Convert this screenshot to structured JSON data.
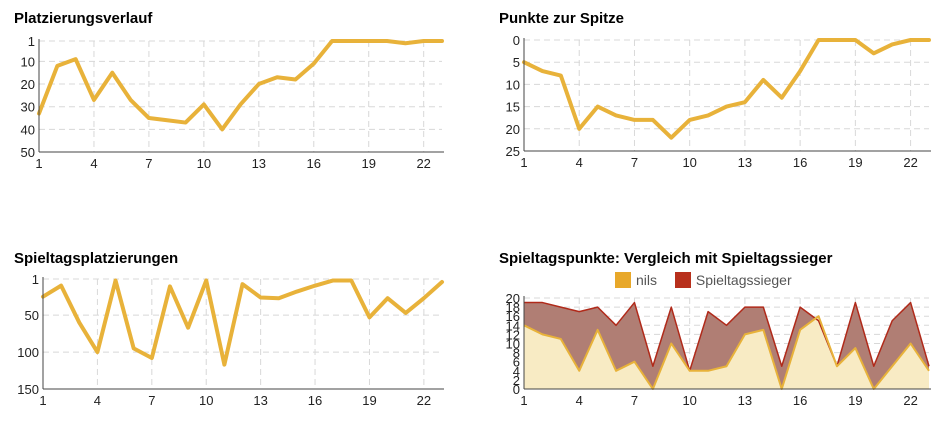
{
  "colors": {
    "line": "#e8b23a",
    "grid": "#d8d8d8",
    "axis": "#444444",
    "winner_fill": "#b07e74",
    "winner_line": "#b02a1a",
    "nils_fill": "#f8ebc4",
    "nils_legend": "#e8a82a",
    "winner_legend": "#b8301c"
  },
  "chart_data": [
    {
      "type": "line",
      "title": "Platzierungsverlauf",
      "x": [
        1,
        2,
        3,
        4,
        5,
        6,
        7,
        8,
        9,
        10,
        11,
        12,
        13,
        14,
        15,
        16,
        17,
        18,
        19,
        20,
        21,
        22,
        23
      ],
      "xticks": [
        1,
        4,
        7,
        10,
        13,
        16,
        19,
        22
      ],
      "yticks": [
        1,
        10,
        20,
        30,
        40,
        50
      ],
      "ylim": [
        1,
        50
      ],
      "y_reversed": true,
      "series": [
        {
          "values": [
            33,
            12,
            9,
            27,
            15,
            27,
            35,
            36,
            37,
            29,
            40,
            29,
            20,
            17,
            18,
            11,
            1,
            1,
            1,
            1,
            2,
            1,
            1
          ]
        }
      ]
    },
    {
      "type": "line",
      "title": "Punkte zur Spitze",
      "x": [
        1,
        2,
        3,
        4,
        5,
        6,
        7,
        8,
        9,
        10,
        11,
        12,
        13,
        14,
        15,
        16,
        17,
        18,
        19,
        20,
        21,
        22,
        23
      ],
      "xticks": [
        1,
        4,
        7,
        10,
        13,
        16,
        19,
        22
      ],
      "yticks": [
        0,
        5,
        10,
        15,
        20,
        25
      ],
      "ylim": [
        0,
        25
      ],
      "y_reversed": true,
      "series": [
        {
          "values": [
            5,
            7,
            8,
            20,
            15,
            17,
            18,
            18,
            22,
            18,
            17,
            15,
            14,
            9,
            13,
            7,
            0,
            0,
            0,
            3,
            1,
            0,
            0
          ]
        }
      ]
    },
    {
      "type": "line",
      "title": "Spieltagsplatzierungen",
      "x": [
        1,
        2,
        3,
        4,
        5,
        6,
        7,
        8,
        9,
        10,
        11,
        12,
        13,
        14,
        15,
        16,
        17,
        18,
        19,
        20,
        21,
        22,
        23
      ],
      "xticks": [
        1,
        4,
        7,
        10,
        13,
        16,
        19,
        22
      ],
      "yticks": [
        1,
        50,
        100,
        150
      ],
      "ylim": [
        1,
        150
      ],
      "y_reversed": true,
      "series": [
        {
          "values": [
            25,
            10,
            60,
            100,
            3,
            95,
            108,
            11,
            67,
            3,
            117,
            8,
            26,
            27,
            18,
            10,
            3,
            3,
            53,
            27,
            47,
            27,
            5
          ]
        }
      ]
    },
    {
      "type": "area",
      "title": "Spieltagspunkte: Vergleich mit Spieltagssieger",
      "legend": [
        "nils",
        "Spieltagssieger"
      ],
      "legend_position": "top",
      "x": [
        1,
        2,
        3,
        4,
        5,
        6,
        7,
        8,
        9,
        10,
        11,
        12,
        13,
        14,
        15,
        16,
        17,
        18,
        19,
        20,
        21,
        22,
        23
      ],
      "xticks": [
        1,
        4,
        7,
        10,
        13,
        16,
        19,
        22
      ],
      "yticks": [
        0,
        2,
        4,
        6,
        8,
        10,
        12,
        14,
        16,
        18,
        20
      ],
      "ylim": [
        0,
        20
      ],
      "series": [
        {
          "name": "nils",
          "values": [
            14,
            12,
            11,
            4,
            13,
            4,
            6,
            0,
            10,
            4,
            4,
            5,
            12,
            13,
            0,
            13,
            16,
            5,
            9,
            0,
            5,
            10,
            4
          ]
        },
        {
          "name": "Spieltagssieger",
          "values": [
            19,
            19,
            18,
            17,
            18,
            14,
            19,
            5,
            18,
            4,
            17,
            14,
            18,
            18,
            5,
            18,
            15,
            5,
            19,
            5,
            15,
            19,
            5
          ]
        }
      ]
    }
  ]
}
